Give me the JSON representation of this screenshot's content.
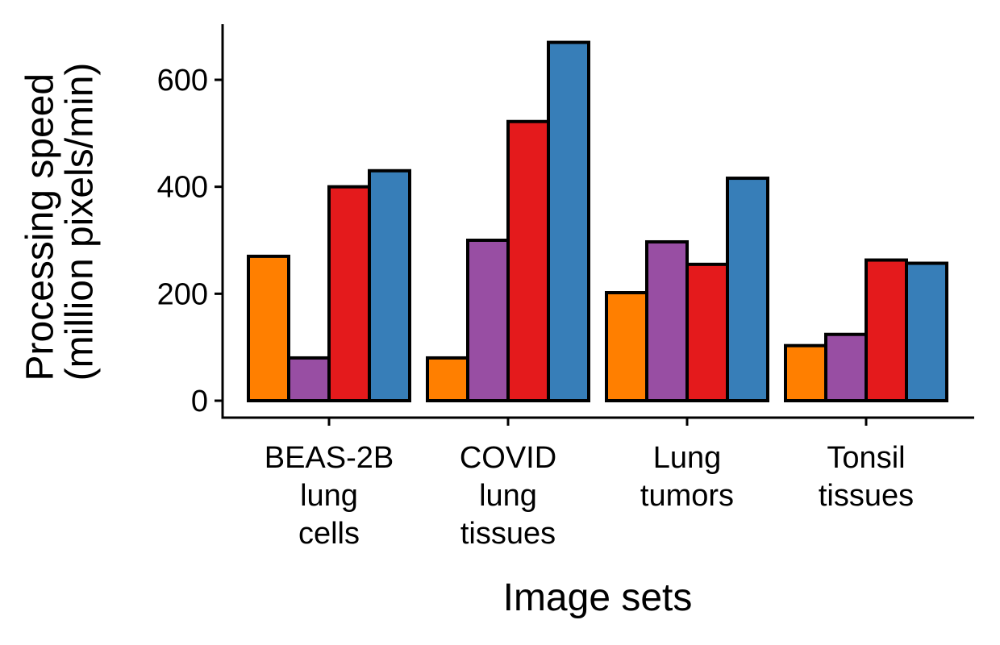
{
  "chart_data": {
    "type": "bar",
    "title": "",
    "xlabel": "Image sets",
    "ylabel": [
      "Processing speed",
      "(million pixels/min)"
    ],
    "categories": [
      [
        "BEAS-2B",
        "lung",
        "cells"
      ],
      [
        "COVID",
        "lung",
        "tissues"
      ],
      [
        "Lung",
        "tumors"
      ],
      [
        "Tonsil",
        "tissues"
      ]
    ],
    "series": [
      {
        "color": "#FF7F00",
        "values": [
          270,
          80,
          202,
          103
        ]
      },
      {
        "color": "#984EA3",
        "values": [
          80,
          300,
          297,
          124
        ]
      },
      {
        "color": "#E41A1C",
        "values": [
          400,
          522,
          255,
          263
        ]
      },
      {
        "color": "#377EB8",
        "values": [
          430,
          670,
          416,
          257
        ]
      }
    ],
    "ylim": [
      0,
      700
    ],
    "yticks": [
      0,
      200,
      400,
      600
    ],
    "legend": "none",
    "grid": false
  }
}
